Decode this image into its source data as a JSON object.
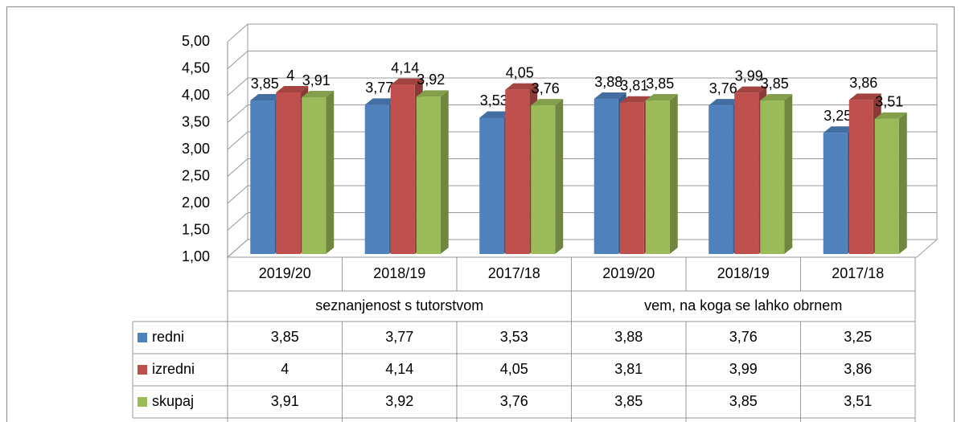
{
  "chart_data": {
    "type": "bar3d",
    "categories": [
      "2019/20",
      "2018/19",
      "2017/18",
      "2019/20",
      "2018/19",
      "2017/18"
    ],
    "category_groups": [
      "seznanjenost s tutorstvom",
      "vem, na koga se lahko obrnem"
    ],
    "series": [
      {
        "name": "redni",
        "color": "#4f81bd",
        "values": [
          3.85,
          3.77,
          3.53,
          3.88,
          3.76,
          3.25
        ],
        "value_labels": [
          "3,85",
          "3,77",
          "3,53",
          "3,88",
          "3,76",
          "3,25"
        ]
      },
      {
        "name": "izredni",
        "color": "#c0504d",
        "values": [
          4,
          4.14,
          4.05,
          3.81,
          3.99,
          3.86
        ],
        "value_labels": [
          "4",
          "4,14",
          "4,05",
          "3,81",
          "3,99",
          "3,86"
        ]
      },
      {
        "name": "skupaj",
        "color": "#9bbb59",
        "values": [
          3.91,
          3.92,
          3.76,
          3.85,
          3.85,
          3.51
        ],
        "value_labels": [
          "3,91",
          "3,92",
          "3,76",
          "3,85",
          "3,85",
          "3,51"
        ]
      }
    ],
    "ylim": [
      1,
      5
    ],
    "yticks": [
      {
        "value": 1,
        "label": "1,00"
      },
      {
        "value": 1.5,
        "label": "1,50"
      },
      {
        "value": 2,
        "label": "2,00"
      },
      {
        "value": 2.5,
        "label": "2,50"
      },
      {
        "value": 3,
        "label": "3,00"
      },
      {
        "value": 3.5,
        "label": "3,50"
      },
      {
        "value": 4,
        "label": "4,00"
      },
      {
        "value": 4.5,
        "label": "4,50"
      },
      {
        "value": 5,
        "label": "5,00"
      }
    ],
    "grid": true,
    "legend": "table"
  }
}
